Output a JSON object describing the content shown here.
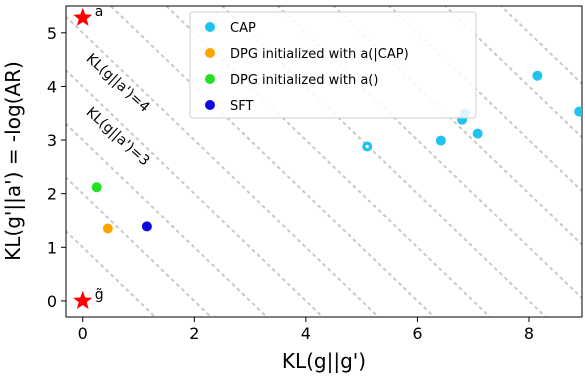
{
  "chart_data": {
    "type": "scatter",
    "xlabel": "KL(g||g')",
    "ylabel": "KL(g'||a') = -log(AR)",
    "xlim": [
      -0.3,
      8.95
    ],
    "ylim": [
      -0.3,
      5.5
    ],
    "xticks": [
      "0",
      "2",
      "4",
      "6",
      "8"
    ],
    "yticks": [
      "0",
      "1",
      "2",
      "3",
      "4",
      "5"
    ],
    "grid": false,
    "legend_position": "top-center",
    "series": [
      {
        "name": "CAP",
        "color": "#1ec3f0",
        "points": [
          {
            "x": 5.1,
            "y": 2.88
          },
          {
            "x": 6.42,
            "y": 2.99
          },
          {
            "x": 6.8,
            "y": 3.38
          },
          {
            "x": 6.85,
            "y": 3.5
          },
          {
            "x": 7.08,
            "y": 3.12
          },
          {
            "x": 8.15,
            "y": 4.2
          },
          {
            "x": 8.9,
            "y": 3.53
          }
        ]
      },
      {
        "name": "DPG initialized with a(|CAP)",
        "color": "#ffa500",
        "points": [
          {
            "x": 0.45,
            "y": 1.35
          }
        ]
      },
      {
        "name": "DPG initialized with a()",
        "color": "#22e022",
        "points": [
          {
            "x": 0.25,
            "y": 2.12
          }
        ]
      },
      {
        "name": "SFT",
        "color": "#0a0ae0",
        "points": [
          {
            "x": 1.15,
            "y": 1.39
          }
        ]
      }
    ],
    "stars": [
      {
        "label": "a",
        "x": 0,
        "y": 5.28,
        "color": "#ff0000"
      },
      {
        "label": "g̃",
        "x": 0,
        "y": 0,
        "color": "#ff0000"
      }
    ],
    "iso_lines": {
      "description_values": [
        1,
        2,
        3,
        4,
        5,
        6,
        7,
        8,
        9,
        10,
        11,
        12,
        13
      ],
      "color": "#c8c8c8"
    },
    "annotations": [
      {
        "text": "KL(g||a')=4",
        "x": 0.05,
        "y": 4.5
      },
      {
        "text": "KL(g||a')=3",
        "x": 0.05,
        "y": 3.5
      }
    ]
  }
}
